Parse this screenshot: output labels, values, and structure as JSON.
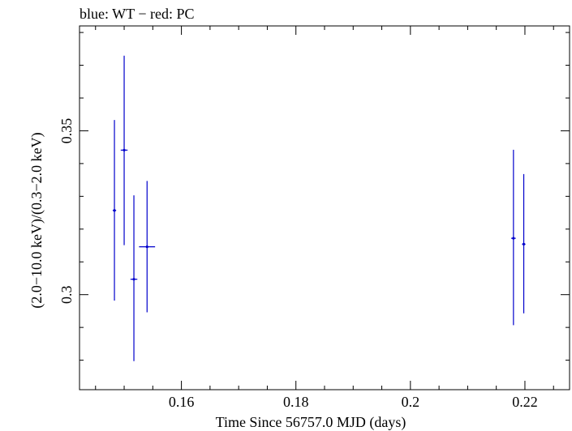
{
  "chart_data": {
    "type": "scatter",
    "title": "blue: WT − red: PC",
    "xlabel": "Time Since 56757.0 MJD (days)",
    "ylabel": "(2.0−10.0 keV)/(0.3−2.0 keV)",
    "xlim": [
      0.1422,
      0.2278
    ],
    "ylim": [
      0.271,
      0.382
    ],
    "xticks": [
      {
        "value": 0.16,
        "label": "0.16"
      },
      {
        "value": 0.18,
        "label": "0.18"
      },
      {
        "value": 0.2,
        "label": "0.2"
      },
      {
        "value": 0.22,
        "label": "0.22"
      }
    ],
    "yticks": [
      {
        "value": 0.3,
        "label": "0.3"
      },
      {
        "value": 0.35,
        "label": "0.35"
      }
    ],
    "grid": false,
    "series": [
      {
        "name": "WT",
        "color": "#0000cc",
        "points": [
          {
            "x": 0.1483,
            "xerr": 0.0003,
            "y": 0.3257,
            "ylow": 0.2982,
            "yhigh": 0.3533
          },
          {
            "x": 0.15,
            "xerr": 0.0006,
            "y": 0.3441,
            "ylow": 0.3151,
            "yhigh": 0.3729
          },
          {
            "x": 0.1517,
            "xerr": 0.0006,
            "y": 0.3047,
            "ylow": 0.2797,
            "yhigh": 0.3303
          },
          {
            "x": 0.154,
            "xerr": 0.0014,
            "y": 0.3146,
            "ylow": 0.2946,
            "yhigh": 0.3347
          },
          {
            "x": 0.218,
            "xerr": 0.0004,
            "y": 0.3172,
            "ylow": 0.2907,
            "yhigh": 0.3442
          },
          {
            "x": 0.2198,
            "xerr": 0.0003,
            "y": 0.3154,
            "ylow": 0.2943,
            "yhigh": 0.3368
          }
        ]
      }
    ]
  }
}
